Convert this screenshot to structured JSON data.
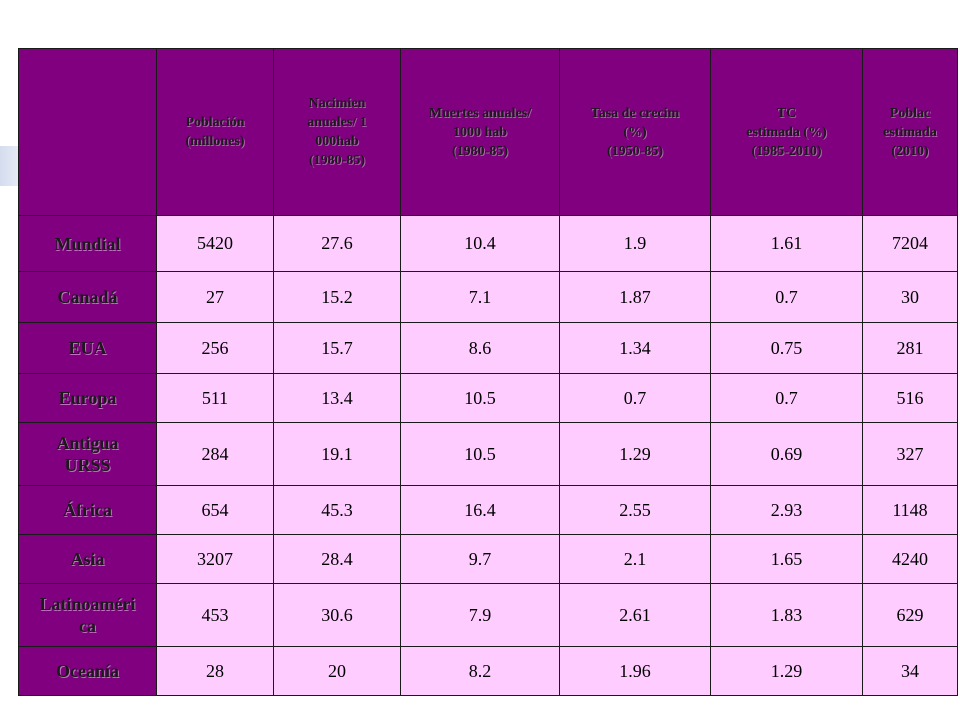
{
  "table": {
    "headers": [
      "",
      "Población\n(millones)",
      "Nacimien\nanuales/ 1\n000hab\n(1980-85)",
      "Muertes anuales/\n1000 hab\n(1980-85)",
      "Tasa de crecim\n(%)\n(1950-85)",
      "TC\nestimada (%)\n(1985-2010)",
      "Poblac\nestimada\n(2010)"
    ],
    "rows": [
      {
        "region": "Mundial",
        "values": [
          "5420",
          "27.6",
          "10.4",
          "1.9",
          "1.61",
          "7204"
        ]
      },
      {
        "region": "Canadá",
        "values": [
          "27",
          "15.2",
          "7.1",
          "1.87",
          "0.7",
          "30"
        ]
      },
      {
        "region": "EUA",
        "values": [
          "256",
          "15.7",
          "8.6",
          "1.34",
          "0.75",
          "281"
        ]
      },
      {
        "region": "Europa",
        "values": [
          "511",
          "13.4",
          "10.5",
          "0.7",
          "0.7",
          "516"
        ]
      },
      {
        "region": "Antigua\nURSS",
        "values": [
          "284",
          "19.1",
          "10.5",
          "1.29",
          "0.69",
          "327"
        ]
      },
      {
        "region": "África",
        "values": [
          "654",
          "45.3",
          "16.4",
          "2.55",
          "2.93",
          "1148"
        ]
      },
      {
        "region": "Asia",
        "values": [
          "3207",
          "28.4",
          "9.7",
          "2.1",
          "1.65",
          "4240"
        ]
      },
      {
        "region": "Latinoaméri\nca",
        "values": [
          "453",
          "30.6",
          "7.9",
          "2.61",
          "1.83",
          "629"
        ]
      },
      {
        "region": "Oceanía",
        "values": [
          "28",
          "20",
          "8.2",
          "1.96",
          "1.29",
          "34"
        ]
      }
    ]
  }
}
